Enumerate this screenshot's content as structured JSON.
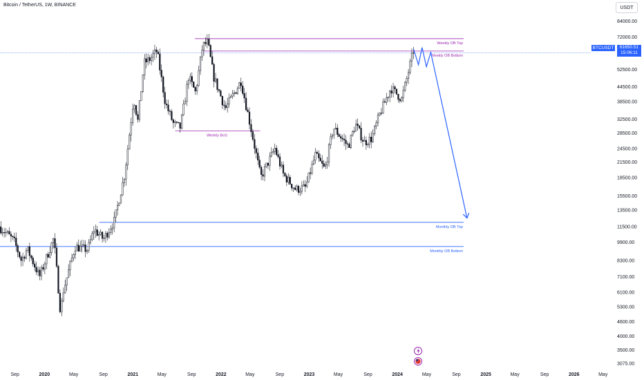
{
  "header": {
    "title": "Bitcoin / TetherUS, 1W, BINANCE",
    "currency": "USDT"
  },
  "price_tag": {
    "symbol": "BTCUSDT",
    "price": "61650.51",
    "countdown": "15:06:11"
  },
  "colors": {
    "up": "#26a69a",
    "down": "#ef5350",
    "candle": "#131722",
    "zone_magenta": "#9c27b0",
    "zone_blue": "#2962ff",
    "projection": "#2962ff"
  },
  "chart_data": {
    "type": "candlestick",
    "timeframe": "1W",
    "y_scale": "log",
    "y_ticks": [
      84000,
      72000,
      61650.51,
      52500,
      44500,
      38500,
      32500,
      28500,
      24500,
      21500,
      18500,
      15500,
      13500,
      11500,
      9900,
      8300,
      7100,
      6100,
      5300,
      4600,
      4000,
      3500,
      3075
    ],
    "y_tick_labels": [
      "84000.00",
      "72000.00",
      "61650.51",
      "52500.00",
      "44500.00",
      "38500.00",
      "32500.00",
      "28500.00",
      "24500.00",
      "21500.00",
      "18500.00",
      "15500.00",
      "13500.00",
      "11500.00",
      "9900.00",
      "8300.00",
      "7100.00",
      "6100.00",
      "5300.00",
      "4600.00",
      "4000.00",
      "3500.00",
      "3075.00"
    ],
    "ylim": [
      2950,
      90000
    ],
    "x_ticks": [
      {
        "label": "Sep",
        "date": "2019-09-01",
        "bold": false
      },
      {
        "label": "2020",
        "date": "2020-01-01",
        "bold": true
      },
      {
        "label": "May",
        "date": "2020-05-01",
        "bold": false
      },
      {
        "label": "Sep",
        "date": "2020-09-01",
        "bold": false
      },
      {
        "label": "2021",
        "date": "2021-01-01",
        "bold": true
      },
      {
        "label": "May",
        "date": "2021-05-01",
        "bold": false
      },
      {
        "label": "Sep",
        "date": "2021-09-01",
        "bold": false
      },
      {
        "label": "2022",
        "date": "2022-01-01",
        "bold": true
      },
      {
        "label": "May",
        "date": "2022-05-01",
        "bold": false
      },
      {
        "label": "Sep",
        "date": "2022-09-01",
        "bold": false
      },
      {
        "label": "2023",
        "date": "2023-01-01",
        "bold": true
      },
      {
        "label": "May",
        "date": "2023-05-01",
        "bold": false
      },
      {
        "label": "Sep",
        "date": "2023-09-01",
        "bold": false
      },
      {
        "label": "2024",
        "date": "2024-01-01",
        "bold": true
      },
      {
        "label": "May",
        "date": "2024-05-01",
        "bold": false
      },
      {
        "label": "Sep",
        "date": "2024-09-01",
        "bold": false
      },
      {
        "label": "2025",
        "date": "2025-01-01",
        "bold": true
      },
      {
        "label": "May",
        "date": "2025-05-01",
        "bold": false
      },
      {
        "label": "Sep",
        "date": "2025-09-01",
        "bold": false
      },
      {
        "label": "2026",
        "date": "2026-01-01",
        "bold": true
      },
      {
        "label": "May",
        "date": "2026-05-01",
        "bold": false
      }
    ],
    "price_path": [
      [
        "2019-07-01",
        11500
      ],
      [
        "2019-08-01",
        10800
      ],
      [
        "2019-09-01",
        10000
      ],
      [
        "2019-10-01",
        8300
      ],
      [
        "2019-10-25",
        9300
      ],
      [
        "2019-12-15",
        7100
      ],
      [
        "2020-02-12",
        10300
      ],
      [
        "2020-03-12",
        4900
      ],
      [
        "2020-03-19",
        6000
      ],
      [
        "2020-05-10",
        9500
      ],
      [
        "2020-07-01",
        9200
      ],
      [
        "2020-07-28",
        11200
      ],
      [
        "2020-09-05",
        10200
      ],
      [
        "2020-10-20",
        12200
      ],
      [
        "2020-12-01",
        19000
      ],
      [
        "2021-01-08",
        40000
      ],
      [
        "2021-01-25",
        32000
      ],
      [
        "2021-02-20",
        56000
      ],
      [
        "2021-03-15",
        58000
      ],
      [
        "2021-04-14",
        63000
      ],
      [
        "2021-05-19",
        38000
      ],
      [
        "2021-06-22",
        31000
      ],
      [
        "2021-07-20",
        30000
      ],
      [
        "2021-08-23",
        49000
      ],
      [
        "2021-09-21",
        42000
      ],
      [
        "2021-10-20",
        66000
      ],
      [
        "2021-11-10",
        68500
      ],
      [
        "2021-12-05",
        49000
      ],
      [
        "2022-01-22",
        36000
      ],
      [
        "2022-03-28",
        47000
      ],
      [
        "2022-05-12",
        28500
      ],
      [
        "2022-06-18",
        18500
      ],
      [
        "2022-08-15",
        24500
      ],
      [
        "2022-09-20",
        19000
      ],
      [
        "2022-11-09",
        16500
      ],
      [
        "2022-12-20",
        16800
      ],
      [
        "2023-01-30",
        23000
      ],
      [
        "2023-03-10",
        20000
      ],
      [
        "2023-04-14",
        30000
      ],
      [
        "2023-06-15",
        25000
      ],
      [
        "2023-07-15",
        31000
      ],
      [
        "2023-08-20",
        26000
      ],
      [
        "2023-09-20",
        27000
      ],
      [
        "2023-10-25",
        34500
      ],
      [
        "2023-12-08",
        44000
      ],
      [
        "2024-01-22",
        39500
      ],
      [
        "2024-02-12",
        48000
      ],
      [
        "2024-03-08",
        61650
      ]
    ],
    "annotations": {
      "zones": [
        {
          "label": "Weekly OB Top",
          "price": 70800,
          "x_start": "2021-09-15",
          "x_end": "2024-10-01",
          "color": "#9c27b0"
        },
        {
          "label": "Weekly OB Bottom",
          "price": 62800,
          "x_start": "2021-10-20",
          "x_end": "2024-10-01",
          "color": "#9c27b0"
        },
        {
          "label": "Weekly BoS",
          "price": 29000,
          "x_start": "2021-06-25",
          "x_end": "2022-06-12",
          "color": "#9c27b0"
        },
        {
          "label": "Monthly OB Top",
          "price": 12000,
          "x_start": "2020-08-15",
          "x_end": "2024-10-01",
          "color": "#2962ff"
        },
        {
          "label": "Monthly OB Bottom",
          "price": 9500,
          "x_start": "2019-07-01",
          "x_end": "2024-10-01",
          "color": "#2962ff"
        }
      ],
      "projection": [
        [
          "2024-03-08",
          64000
        ],
        [
          "2024-03-28",
          55000
        ],
        [
          "2024-04-12",
          65000
        ],
        [
          "2024-04-30",
          54000
        ],
        [
          "2024-05-18",
          62000
        ],
        [
          "2024-10-15",
          12500
        ]
      ]
    }
  }
}
